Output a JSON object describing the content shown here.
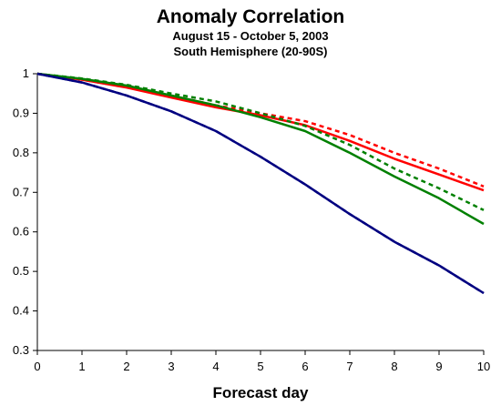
{
  "chart_data": {
    "type": "line",
    "title": "Anomaly Correlation",
    "subtitle": "August 15 - October 5, 2003",
    "subtitle2": "South Hemisphere (20-90S)",
    "xlabel": "Forecast day",
    "ylabel": "",
    "xlim": [
      0,
      10
    ],
    "ylim": [
      0.3,
      1
    ],
    "x": [
      0,
      1,
      2,
      3,
      4,
      5,
      6,
      7,
      8,
      9,
      10
    ],
    "xticks": [
      "0",
      "1",
      "2",
      "3",
      "4",
      "5",
      "6",
      "7",
      "8",
      "9",
      "10"
    ],
    "yticks": [
      "0.3",
      "0.4",
      "0.5",
      "0.6",
      "0.7",
      "0.8",
      "0.9",
      "1"
    ],
    "grid": false,
    "legend": "none",
    "series": [
      {
        "color": "#ff0000",
        "dash": "solid",
        "values": [
          1.0,
          0.985,
          0.965,
          0.94,
          0.915,
          0.895,
          0.87,
          0.83,
          0.785,
          0.745,
          0.705
        ]
      },
      {
        "color": "#ff0000",
        "dash": "dashed",
        "values": [
          1.0,
          0.985,
          0.966,
          0.945,
          0.92,
          0.9,
          0.88,
          0.845,
          0.8,
          0.76,
          0.715
        ]
      },
      {
        "color": "#008000",
        "dash": "solid",
        "values": [
          1.0,
          0.987,
          0.97,
          0.945,
          0.92,
          0.89,
          0.855,
          0.8,
          0.74,
          0.685,
          0.62
        ]
      },
      {
        "color": "#008000",
        "dash": "dashed",
        "values": [
          1.0,
          0.988,
          0.972,
          0.95,
          0.93,
          0.9,
          0.868,
          0.82,
          0.76,
          0.71,
          0.655
        ]
      },
      {
        "color": "#000080",
        "dash": "solid",
        "values": [
          1.0,
          0.978,
          0.945,
          0.905,
          0.855,
          0.79,
          0.72,
          0.645,
          0.575,
          0.515,
          0.445
        ]
      },
      {
        "color": "#000080",
        "dash": "dashed",
        "values": [
          1.0,
          0.978,
          0.945,
          0.905,
          0.855,
          0.79,
          0.72,
          0.645,
          0.575,
          0.515,
          0.445
        ]
      }
    ]
  }
}
